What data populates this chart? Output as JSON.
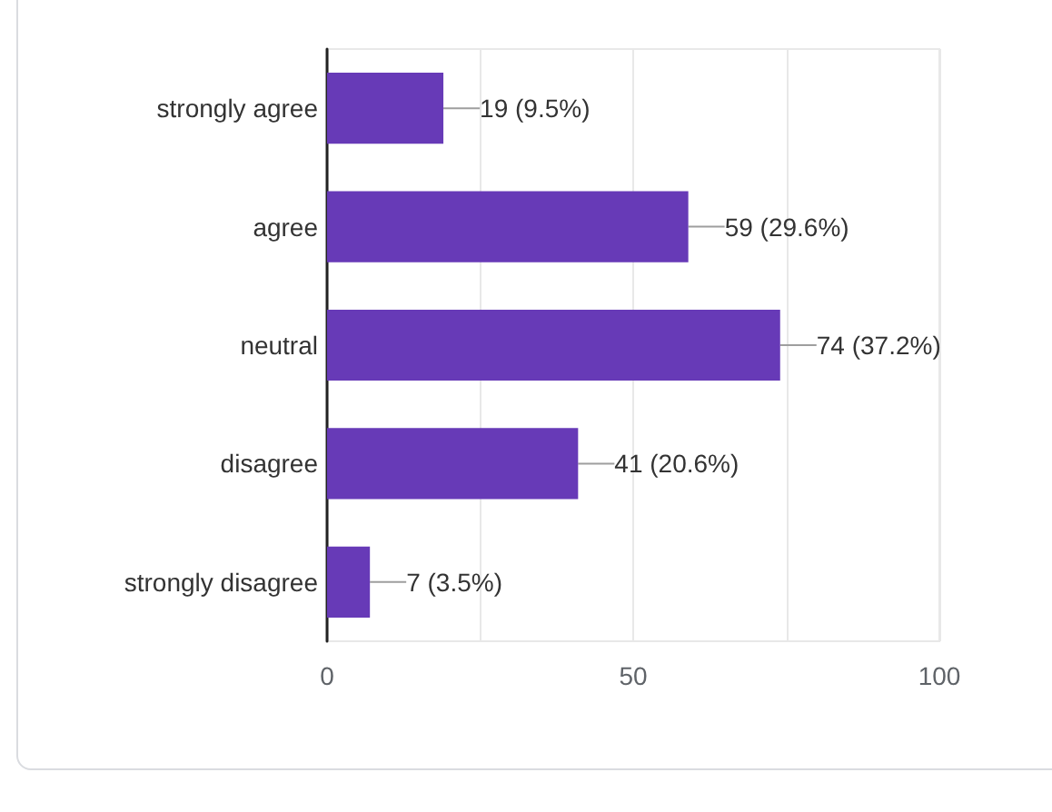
{
  "chart_data": {
    "type": "bar",
    "orientation": "horizontal",
    "categories": [
      "strongly agree",
      "agree",
      "neutral",
      "disagree",
      "strongly disagree"
    ],
    "values": [
      19,
      59,
      74,
      41,
      7
    ],
    "color": "#673ab7",
    "value_labels": [
      "19 (9.5%)",
      "59 (29.6%)",
      "74 (37.2%)",
      "41 (20.6%)",
      "7 (3.5%)"
    ],
    "xlim": [
      0,
      100
    ],
    "xticks": [
      0,
      {
        "value": 25,
        "label": null
      },
      50,
      {
        "value": 75,
        "label": null
      },
      100
    ],
    "grid": "x"
  }
}
